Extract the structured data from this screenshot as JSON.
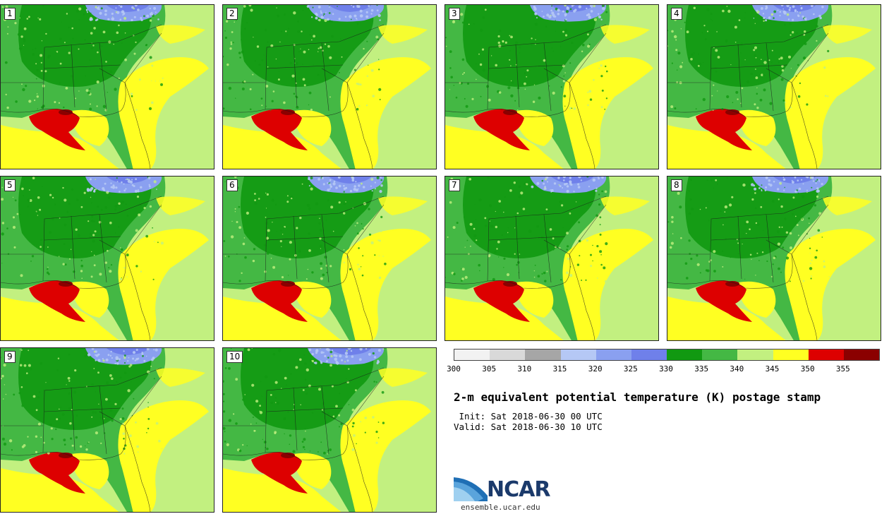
{
  "panels": [
    {
      "label": "1"
    },
    {
      "label": "2"
    },
    {
      "label": "3"
    },
    {
      "label": "4"
    },
    {
      "label": "5"
    },
    {
      "label": "6"
    },
    {
      "label": "7"
    },
    {
      "label": "8"
    },
    {
      "label": "9"
    },
    {
      "label": "10"
    }
  ],
  "colorbar": {
    "colors": [
      "#f2f2f2",
      "#d9d9d9",
      "#a6a6a6",
      "#b5c8f5",
      "#8aa0f0",
      "#6f80ea",
      "#119911",
      "#44b844",
      "#c2f080",
      "#ffff22",
      "#dd0000",
      "#8b0000"
    ],
    "ticks": [
      "300",
      "305",
      "310",
      "315",
      "320",
      "325",
      "330",
      "335",
      "340",
      "345",
      "350",
      "355"
    ]
  },
  "title": "2-m equivalent potential temperature (K) postage stamp",
  "init_text": " Init: Sat 2018-06-30 00 UTC",
  "valid_text": "Valid: Sat 2018-06-30 10 UTC",
  "logo": {
    "text": "NCAR",
    "url": "ensemble.ucar.edu"
  }
}
